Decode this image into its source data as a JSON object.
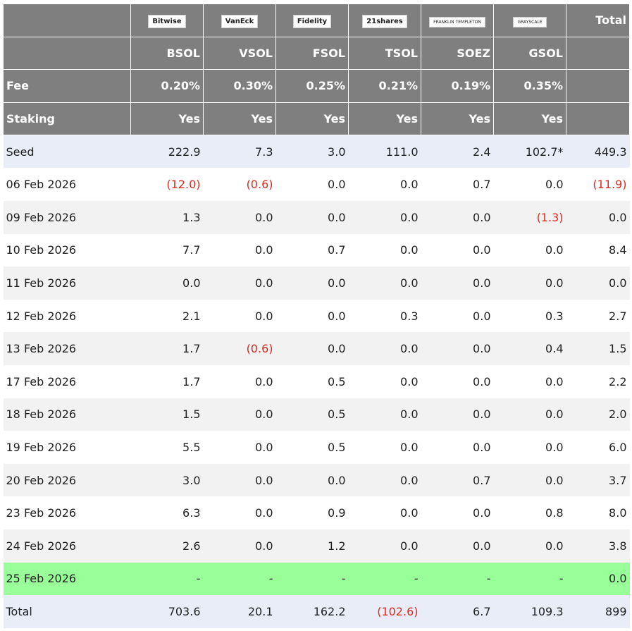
{
  "header": {
    "logos": [
      "Bitwise",
      "VanEck",
      "Fidelity",
      "21shares",
      "FRANKLIN TEMPLETON",
      "GRAYSCALE"
    ],
    "total_label": "Total",
    "tickers": [
      "BSOL",
      "VSOL",
      "FSOL",
      "TSOL",
      "SOEZ",
      "GSOL"
    ]
  },
  "table": {
    "attributes": [
      [
        "Fee",
        "0.20%",
        "0.30%",
        "0.25%",
        "0.21%",
        "0.19%",
        "0.35%"
      ],
      [
        "Staking",
        "Yes",
        "Yes",
        "Yes",
        "Yes",
        "Yes",
        "Yes"
      ]
    ],
    "rows": [
      [
        "Seed",
        "222.9",
        "7.3",
        "3.0",
        "111.0",
        "2.4",
        "102.7*",
        "449.3"
      ],
      [
        "06 Feb 2026",
        "(12.0)",
        "(0.6)",
        "0.0",
        "0.0",
        "0.7",
        "0.0",
        "(11.9)"
      ],
      [
        "09 Feb 2026",
        "1.3",
        "0.0",
        "0.0",
        "0.0",
        "0.0",
        "(1.3)",
        "0.0"
      ],
      [
        "10 Feb 2026",
        "7.7",
        "0.0",
        "0.7",
        "0.0",
        "0.0",
        "0.0",
        "8.4"
      ],
      [
        "11 Feb 2026",
        "0.0",
        "0.0",
        "0.0",
        "0.0",
        "0.0",
        "0.0",
        "0.0"
      ],
      [
        "12 Feb 2026",
        "2.1",
        "0.0",
        "0.0",
        "0.3",
        "0.0",
        "0.3",
        "2.7"
      ],
      [
        "13 Feb 2026",
        "1.7",
        "(0.6)",
        "0.0",
        "0.0",
        "0.0",
        "0.4",
        "1.5"
      ],
      [
        "17 Feb 2026",
        "1.7",
        "0.0",
        "0.5",
        "0.0",
        "0.0",
        "0.0",
        "2.2"
      ],
      [
        "18 Feb 2026",
        "1.5",
        "0.0",
        "0.5",
        "0.0",
        "0.0",
        "0.0",
        "2.0"
      ],
      [
        "19 Feb 2026",
        "5.5",
        "0.0",
        "0.5",
        "0.0",
        "0.0",
        "0.0",
        "6.0"
      ],
      [
        "20 Feb 2026",
        "3.0",
        "0.0",
        "0.0",
        "0.0",
        "0.7",
        "0.0",
        "3.7"
      ],
      [
        "23 Feb 2026",
        "6.3",
        "0.0",
        "0.9",
        "0.0",
        "0.0",
        "0.8",
        "8.0"
      ],
      [
        "24 Feb 2026",
        "2.6",
        "0.0",
        "1.2",
        "0.0",
        "0.0",
        "0.0",
        "3.8"
      ],
      [
        "25 Feb 2026",
        "-",
        "-",
        "-",
        "-",
        "-",
        "-",
        "0.0"
      ],
      [
        "Total",
        "703.6",
        "20.1",
        "162.2",
        "(102.6)",
        "6.7",
        "109.3",
        "899"
      ]
    ]
  }
}
